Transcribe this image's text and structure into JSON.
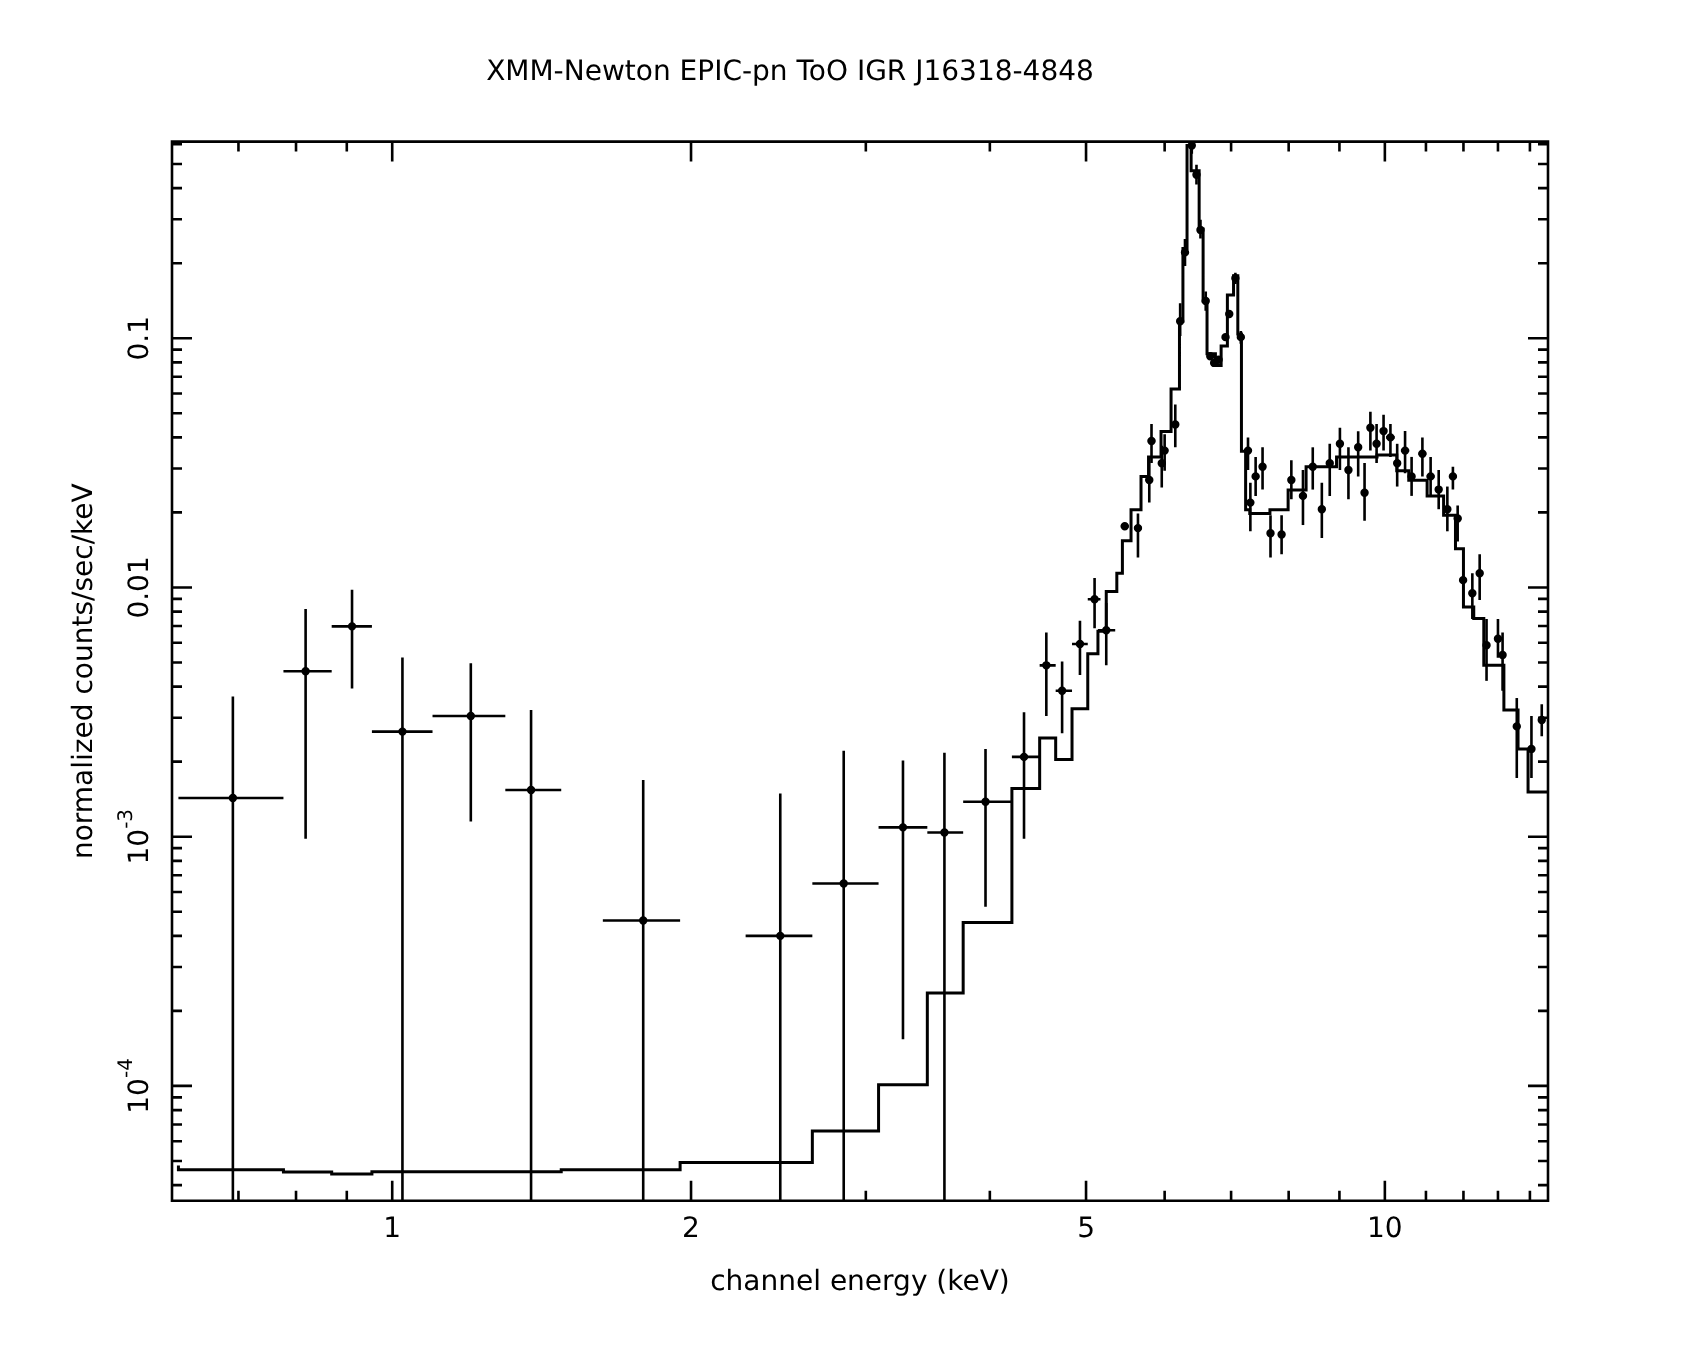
{
  "chart_data": {
    "type": "scatter",
    "title": "XMM-Newton EPIC-pn ToO IGR J16318-4848",
    "xlabel": "channel energy (keV)",
    "ylabel": "normalized counts/sec/keV",
    "log": "xy",
    "grid": false,
    "xlim": [
      0.609,
      14.6
    ],
    "ylim": [
      3.46e-05,
      0.615
    ],
    "xticks": [
      {
        "value": 0.7,
        "label": null
      },
      {
        "value": 0.8,
        "label": null
      },
      {
        "value": 0.9,
        "label": null
      },
      1,
      2,
      {
        "value": 3,
        "label": null
      },
      {
        "value": 4,
        "label": null
      },
      5,
      {
        "value": 6,
        "label": null
      },
      {
        "value": 7,
        "label": null
      },
      {
        "value": 8,
        "label": null
      },
      {
        "value": 9,
        "label": null
      },
      10,
      {
        "value": 11,
        "label": null
      },
      {
        "value": 12,
        "label": null
      },
      {
        "value": 13,
        "label": null
      },
      {
        "value": 14,
        "label": null
      }
    ],
    "yticks": [
      {
        "value": 4e-05,
        "label": null
      },
      {
        "value": 5e-05,
        "label": null
      },
      {
        "value": 6e-05,
        "label": null
      },
      {
        "value": 7e-05,
        "label": null
      },
      {
        "value": 8e-05,
        "label": null
      },
      {
        "value": 9e-05,
        "label": null
      },
      {
        "value": 0.0001,
        "label": "10$^{-4}$"
      },
      {
        "value": 0.0002,
        "label": null
      },
      {
        "value": 0.0003,
        "label": null
      },
      {
        "value": 0.0004,
        "label": null
      },
      {
        "value": 0.0005,
        "label": null
      },
      {
        "value": 0.0006,
        "label": null
      },
      {
        "value": 0.0007,
        "label": null
      },
      {
        "value": 0.0008,
        "label": null
      },
      {
        "value": 0.0009,
        "label": null
      },
      {
        "value": 0.001,
        "label": "10$^{-3}$"
      },
      {
        "value": 0.002,
        "label": null
      },
      {
        "value": 0.003,
        "label": null
      },
      {
        "value": 0.004,
        "label": null
      },
      {
        "value": 0.005,
        "label": null
      },
      {
        "value": 0.006,
        "label": null
      },
      {
        "value": 0.007,
        "label": null
      },
      {
        "value": 0.008,
        "label": null
      },
      {
        "value": 0.009,
        "label": null
      },
      0.01,
      {
        "value": 0.02,
        "label": null
      },
      {
        "value": 0.03,
        "label": null
      },
      {
        "value": 0.04,
        "label": null
      },
      {
        "value": 0.05,
        "label": null
      },
      {
        "value": 0.06,
        "label": null
      },
      {
        "value": 0.07,
        "label": null
      },
      {
        "value": 0.08,
        "label": null
      },
      {
        "value": 0.09,
        "label": null
      },
      0.1,
      {
        "value": 0.2,
        "label": null
      },
      {
        "value": 0.3,
        "label": null
      },
      {
        "value": 0.4,
        "label": null
      },
      {
        "value": 0.5,
        "label": null
      },
      {
        "value": 0.6,
        "label": null
      }
    ],
    "series": [
      {
        "type": "scatter",
        "color": "#000000",
        "x": [
          0.691,
          0.818,
          0.911,
          1.024,
          1.2,
          1.38,
          1.79,
          2.46,
          2.85,
          3.27,
          3.6,
          3.96,
          4.33,
          4.56,
          4.73,
          4.93,
          5.1,
          5.24,
          5.47,
          5.64,
          5.79,
          5.82,
          5.96,
          6.0,
          6.15,
          6.22,
          6.29,
          6.39,
          6.46,
          6.52,
          6.6,
          6.67,
          6.73,
          6.8,
          6.91,
          6.97,
          7.07,
          7.16,
          7.28,
          7.32,
          7.41,
          7.53,
          7.67,
          7.87,
          8.05,
          8.27,
          8.46,
          8.64,
          8.8,
          9.01,
          9.19,
          9.4,
          9.54,
          9.67,
          9.81,
          9.97,
          10.13,
          10.29,
          10.48,
          10.64,
          10.91,
          11.12,
          11.33,
          11.56,
          11.71,
          11.84,
          11.99,
          12.25,
          12.46,
          12.66,
          13.0,
          13.14,
          13.58,
          14.05,
          14.39
        ],
        "values": [
          0.00143,
          0.00461,
          0.00698,
          0.00264,
          0.00305,
          0.00154,
          0.000461,
          0.0004,
          0.000649,
          0.00109,
          0.00104,
          0.00138,
          0.00209,
          0.00487,
          0.00385,
          0.00593,
          0.00897,
          0.00673,
          0.0176,
          0.0173,
          0.027,
          0.0387,
          0.0315,
          0.0354,
          0.0451,
          0.117,
          0.221,
          0.593,
          0.453,
          0.272,
          0.141,
          0.0846,
          0.0796,
          0.082,
          0.101,
          0.125,
          0.174,
          0.101,
          0.0354,
          0.0219,
          0.0279,
          0.0305,
          0.0165,
          0.0163,
          0.027,
          0.0233,
          0.0305,
          0.0206,
          0.0315,
          0.0377,
          0.0296,
          0.0365,
          0.024,
          0.0437,
          0.0377,
          0.0424,
          0.04,
          0.0315,
          0.0354,
          0.0279,
          0.0344,
          0.0279,
          0.0247,
          0.0206,
          0.0279,
          0.0189,
          0.0107,
          0.00948,
          0.0114,
          0.00586,
          0.00623,
          0.00536,
          0.00277,
          0.00225,
          0.00294
        ],
        "errors": [
          [
            3.46e-05,
            0.00365
          ],
          [
            0.00098,
            0.0082
          ],
          [
            0.00393,
            0.0098
          ],
          [
            3.46e-05,
            0.00523
          ],
          [
            0.00115,
            0.00496
          ],
          [
            3.46e-05,
            0.00322
          ],
          [
            3.46e-05,
            0.00169
          ],
          [
            3.46e-05,
            0.00149
          ],
          [
            3.46e-05,
            0.00221
          ],
          [
            0.000154,
            0.00202
          ],
          [
            3.46e-05,
            0.00217
          ],
          [
            0.000524,
            0.00225
          ],
          [
            0.00098,
            0.00316
          ],
          [
            0.00305,
            0.0066
          ],
          [
            0.0026,
            0.00505
          ],
          [
            0.00445,
            0.00736
          ],
          [
            0.00686,
            0.0109
          ],
          [
            0.00487,
            0.00866
          ],
          null,
          [
            0.0132,
            0.0198
          ],
          [
            0.0219,
            0.0334
          ],
          [
            0.0316,
            0.0453
          ],
          [
            0.0252,
            0.037
          ],
          [
            0.0294,
            0.0412
          ],
          [
            0.0365,
            0.0542
          ],
          [
            0.102,
            0.138
          ],
          [
            0.195,
            0.25
          ],
          [
            0.55,
            0.61
          ],
          [
            0.414,
            0.497
          ],
          [
            0.251,
            0.299
          ],
          [
            0.129,
            0.154
          ],
          null,
          null,
          null,
          null,
          null,
          [
            0.165,
            0.183
          ],
          [
            0.095,
            0.107
          ],
          [
            0.0296,
            0.04
          ],
          [
            0.0168,
            0.0263
          ],
          [
            0.0233,
            0.0334
          ],
          [
            0.0247,
            0.0365
          ],
          [
            0.0132,
            0.0195
          ],
          [
            0.0136,
            0.0195
          ],
          [
            0.0226,
            0.0324
          ],
          [
            0.0178,
            0.0296
          ],
          [
            0.0247,
            0.0365
          ],
          [
            0.0158,
            0.0263
          ],
          [
            0.0233,
            0.0377
          ],
          [
            0.0296,
            0.0437
          ],
          [
            0.0226,
            0.0365
          ],
          [
            0.0279,
            0.0423
          ],
          [
            0.0185,
            0.0316
          ],
          [
            0.0354,
            0.0507
          ],
          [
            0.0316,
            0.0453
          ],
          [
            0.0354,
            0.0493
          ],
          [
            0.0334,
            0.0453
          ],
          [
            0.0254,
            0.0377
          ],
          [
            0.0287,
            0.0424
          ],
          [
            0.0233,
            0.0334
          ],
          [
            0.0279,
            0.04
          ],
          [
            0.0233,
            0.0334
          ],
          [
            0.0206,
            0.0296
          ],
          [
            0.0168,
            0.0254
          ],
          [
            0.0247,
            0.0305
          ],
          [
            0.0153,
            0.0213
          ],
          null,
          [
            0.00747,
            0.0114
          ],
          [
            0.0089,
            0.0136
          ],
          [
            0.00422,
            0.00747
          ],
          [
            0.00522,
            0.00747
          ],
          [
            0.00385,
            0.0066
          ],
          [
            0.00172,
            0.0036
          ],
          [
            0.00172,
            0.00305
          ],
          [
            0.00253,
            0.0034
          ]
        ],
        "xerrors": [
          [
            0.609,
            0.777
          ],
          [
            0.777,
            0.869
          ],
          [
            0.869,
            0.954
          ],
          [
            0.954,
            1.098
          ],
          [
            1.098,
            1.3
          ],
          [
            1.3,
            1.48
          ],
          [
            1.63,
            1.95
          ],
          [
            2.27,
            2.65
          ],
          [
            2.65,
            3.09
          ],
          [
            3.09,
            3.46
          ],
          [
            3.46,
            3.76
          ],
          [
            3.76,
            4.21
          ],
          [
            4.21,
            4.49
          ],
          [
            4.49,
            4.66
          ],
          [
            4.66,
            4.84
          ],
          [
            4.84,
            5.02
          ],
          [
            5.02,
            5.17
          ],
          [
            5.14,
            5.35
          ],
          0.05,
          0.05,
          0.05,
          0.05,
          0.05,
          0.04,
          0.04,
          0.03,
          0.03,
          0.03,
          0.03,
          0.03,
          0.03,
          0.03,
          0.03,
          0.03,
          0.03,
          0.03,
          0.03,
          0.03,
          0.06,
          0.06,
          0.06,
          0.06,
          0.06,
          0.06,
          0.06,
          null,
          null,
          0.06,
          0.06,
          0.06,
          0.06,
          0.06,
          0.06,
          0.06,
          0.06,
          0.06,
          0.1,
          null,
          0.1,
          null,
          0.1,
          0.1,
          null,
          null,
          0.1,
          0.1,
          null,
          0.1,
          0.1,
          null,
          0.1,
          0.1,
          null,
          0.1,
          0.1
        ]
      },
      {
        "type": "step",
        "color": "#000000",
        "x": [
          0.609,
          0.777,
          0.869,
          0.954,
          1.48,
          1.95,
          2.65,
          3.09,
          3.46,
          3.76,
          4.21,
          4.49,
          4.66,
          4.84,
          5.02,
          5.14,
          5.24,
          5.37,
          5.44,
          5.55,
          5.68,
          5.78,
          5.95,
          6.09,
          6.21,
          6.26,
          6.32,
          6.38,
          6.5,
          6.56,
          6.62,
          6.75,
          6.84,
          6.94,
          7.04,
          7.11,
          7.17,
          7.24,
          7.31,
          7.66,
          7.99,
          8.33,
          8.94,
          9.82,
          10.28,
          10.57,
          11.03,
          11.46,
          11.78,
          12.0,
          12.29,
          12.58,
          13.18,
          13.62,
          13.94,
          14.4,
          14.6
        ],
        "values": [
          4.79e-05,
          4.61e-05,
          4.51e-05,
          4.43e-05,
          4.53e-05,
          4.61e-05,
          4.93e-05,
          6.6e-05,
          0.000101,
          0.000236,
          0.000453,
          0.00156,
          0.00249,
          0.00204,
          0.00326,
          0.00542,
          0.00667,
          0.00964,
          0.0114,
          0.0154,
          0.0205,
          0.0279,
          0.0334,
          0.0422,
          0.0626,
          0.117,
          0.229,
          0.593,
          0.47,
          0.274,
          0.141,
          0.0866,
          0.0778,
          0.0931,
          0.149,
          0.178,
          0.104,
          0.0352,
          0.0205,
          0.0198,
          0.0205,
          0.0246,
          0.0305,
          0.0334,
          0.034,
          0.0294,
          0.0269,
          0.0233,
          0.0195,
          0.0143,
          0.00835,
          0.0075,
          0.00487,
          0.00322,
          0.00225,
          0.00151,
          0.00151
        ]
      }
    ]
  }
}
